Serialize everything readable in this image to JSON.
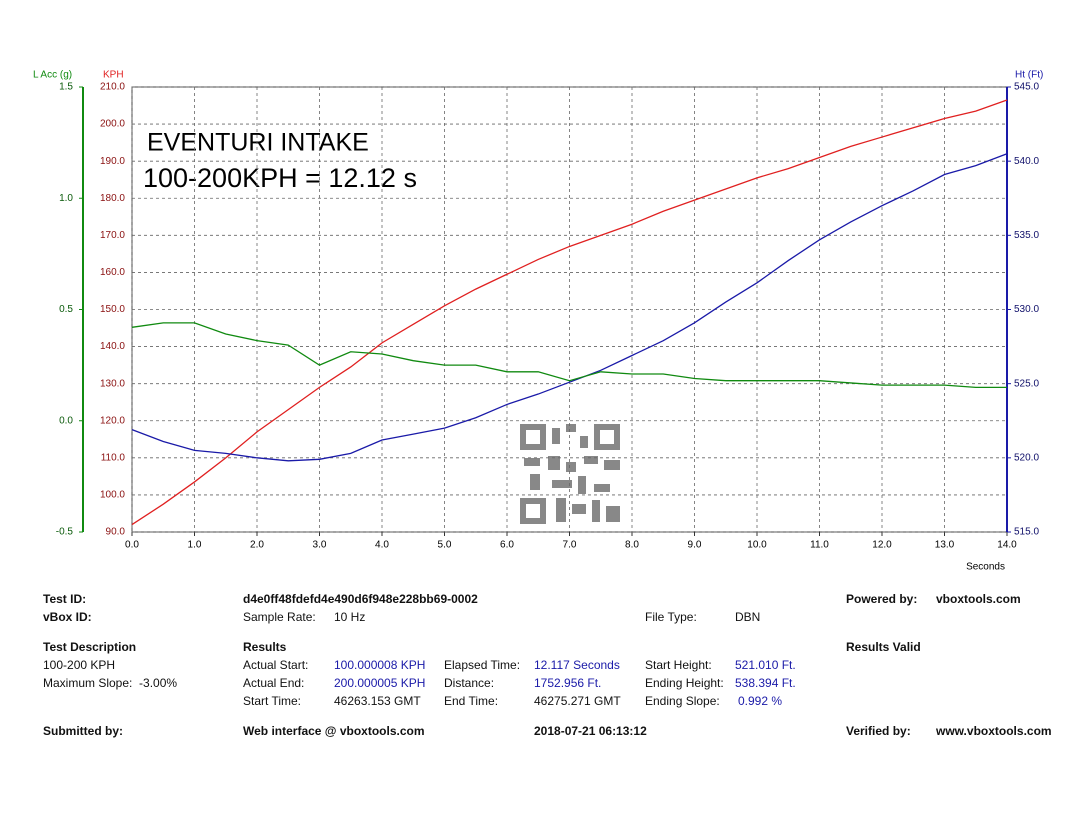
{
  "chart_data": {
    "type": "line",
    "annotations": [
      "EVENTURI INTAKE",
      "100-200KPH = 12.12 s"
    ],
    "x_label": "Seconds",
    "y_label": "KPH",
    "y2_label": "Ht (Ft)",
    "y3_label": "L Acc (g)",
    "x": [
      0,
      0.5,
      1,
      1.5,
      2,
      2.5,
      3,
      3.5,
      4,
      4.5,
      5,
      5.5,
      6,
      6.5,
      7,
      7.5,
      8,
      8.5,
      9,
      9.5,
      10,
      10.5,
      11,
      11.5,
      12,
      12.5,
      13,
      13.5,
      14
    ],
    "xlim": [
      0,
      14
    ],
    "xticks": [
      {
        "value": 0,
        "label": "0.0"
      },
      {
        "value": 1,
        "label": "1.0"
      },
      {
        "value": 2,
        "label": "2.0"
      },
      {
        "value": 3,
        "label": "3.0"
      },
      {
        "value": 4,
        "label": "4.0"
      },
      {
        "value": 5,
        "label": "5.0"
      },
      {
        "value": 6,
        "label": "6.0"
      },
      {
        "value": 7,
        "label": "7.0"
      },
      {
        "value": 8,
        "label": "8.0"
      },
      {
        "value": 9,
        "label": "9.0"
      },
      {
        "value": 10,
        "label": "10.0"
      },
      {
        "value": 11,
        "label": "11.0"
      },
      {
        "value": 12,
        "label": "12.0"
      },
      {
        "value": 13,
        "label": "13.0"
      },
      {
        "value": 14,
        "label": "14.0"
      }
    ],
    "ylim": [
      90,
      210
    ],
    "yticks": [
      {
        "value": 90,
        "label": "90.0"
      },
      {
        "value": 100,
        "label": "100.0"
      },
      {
        "value": 110,
        "label": "110.0"
      },
      {
        "value": 120,
        "label": "120.0"
      },
      {
        "value": 130,
        "label": "130.0"
      },
      {
        "value": 140,
        "label": "140.0"
      },
      {
        "value": 150,
        "label": "150.0"
      },
      {
        "value": 160,
        "label": "160.0"
      },
      {
        "value": 170,
        "label": "170.0"
      },
      {
        "value": 180,
        "label": "180.0"
      },
      {
        "value": 190,
        "label": "190.0"
      },
      {
        "value": 200,
        "label": "200.0"
      },
      {
        "value": 210,
        "label": "210.0"
      }
    ],
    "y2lim": [
      515,
      545
    ],
    "y2ticks": [
      {
        "value": 515,
        "label": "515.0"
      },
      {
        "value": 520,
        "label": "520.0"
      },
      {
        "value": 525,
        "label": "525.0"
      },
      {
        "value": 530,
        "label": "530.0"
      },
      {
        "value": 535,
        "label": "535.0"
      },
      {
        "value": 540,
        "label": "540.0"
      },
      {
        "value": 545,
        "label": "545.0"
      }
    ],
    "y3lim": [
      -0.5,
      1.5
    ],
    "y3ticks": [
      -0.5,
      {
        "value": 0,
        "label": "0.0"
      },
      0.5,
      {
        "value": 1,
        "label": "1.0"
      },
      1.5
    ],
    "grid": true,
    "series": [
      {
        "name": "KPH",
        "color": "#e02020",
        "values": [
          92,
          97.5,
          103.5,
          110,
          117,
          123,
          129,
          134.5,
          141,
          146,
          151,
          155.5,
          159.5,
          163.5,
          167,
          170,
          173,
          176.5,
          179.5,
          182.5,
          185.5,
          188,
          191,
          194,
          196.5,
          199,
          201.5,
          203.5,
          206.5
        ]
      },
      {
        "name": "Ht (Ft)",
        "color": "#1a1aa8",
        "axis": "y2",
        "values": [
          521.9,
          521.1,
          520.5,
          520.3,
          520,
          519.8,
          519.9,
          520.3,
          521.2,
          521.6,
          522,
          522.7,
          523.6,
          524.3,
          525.1,
          525.9,
          526.9,
          527.9,
          529.1,
          530.5,
          531.8,
          533.3,
          534.7,
          535.9,
          537,
          538,
          539.1,
          539.7,
          540.5
        ]
      },
      {
        "name": "L Acc (g)",
        "color": "#108a10",
        "axis": "y3",
        "values": [
          0.42,
          0.44,
          0.44,
          0.39,
          0.36,
          0.34,
          0.25,
          0.31,
          0.3,
          0.27,
          0.25,
          0.25,
          0.22,
          0.22,
          0.18,
          0.22,
          0.21,
          0.21,
          0.19,
          0.18,
          0.18,
          0.18,
          0.18,
          0.17,
          0.16,
          0.16,
          0.16,
          0.15,
          0.15
        ]
      }
    ]
  },
  "report": {
    "rows": [
      [
        "Test ID:",
        "d4e0ff48fdefd4e490d6f948e228bb69-0002",
        "Powered by:",
        "vboxtools.com"
      ],
      [
        "vBox ID:",
        "Sample Rate:",
        "10 Hz",
        "File Type:",
        "DBN"
      ],
      [
        "Test Description",
        "Results",
        "Results Valid"
      ],
      [
        "100-200 KPH",
        "Actual Start:",
        "100.000008 KPH",
        "Elapsed Time:",
        "12.117 Seconds",
        "Start Height:",
        "521.010 Ft."
      ],
      [
        "Maximum Slope:  -3.00%",
        "Actual End:",
        "200.000005 KPH",
        "Distance:",
        "1752.956 Ft.",
        "Ending Height:",
        "538.394 Ft."
      ],
      [
        "Start Time:",
        "46263.153 GMT",
        "End Time:",
        "46275.271 GMT",
        "Ending Slope:",
        "0.992 %"
      ],
      [
        "Submitted by:",
        "Web interface @ vboxtools.com",
        "2018-07-21 06:13:12",
        "Verified by:",
        "www.vboxtools.com"
      ]
    ]
  }
}
